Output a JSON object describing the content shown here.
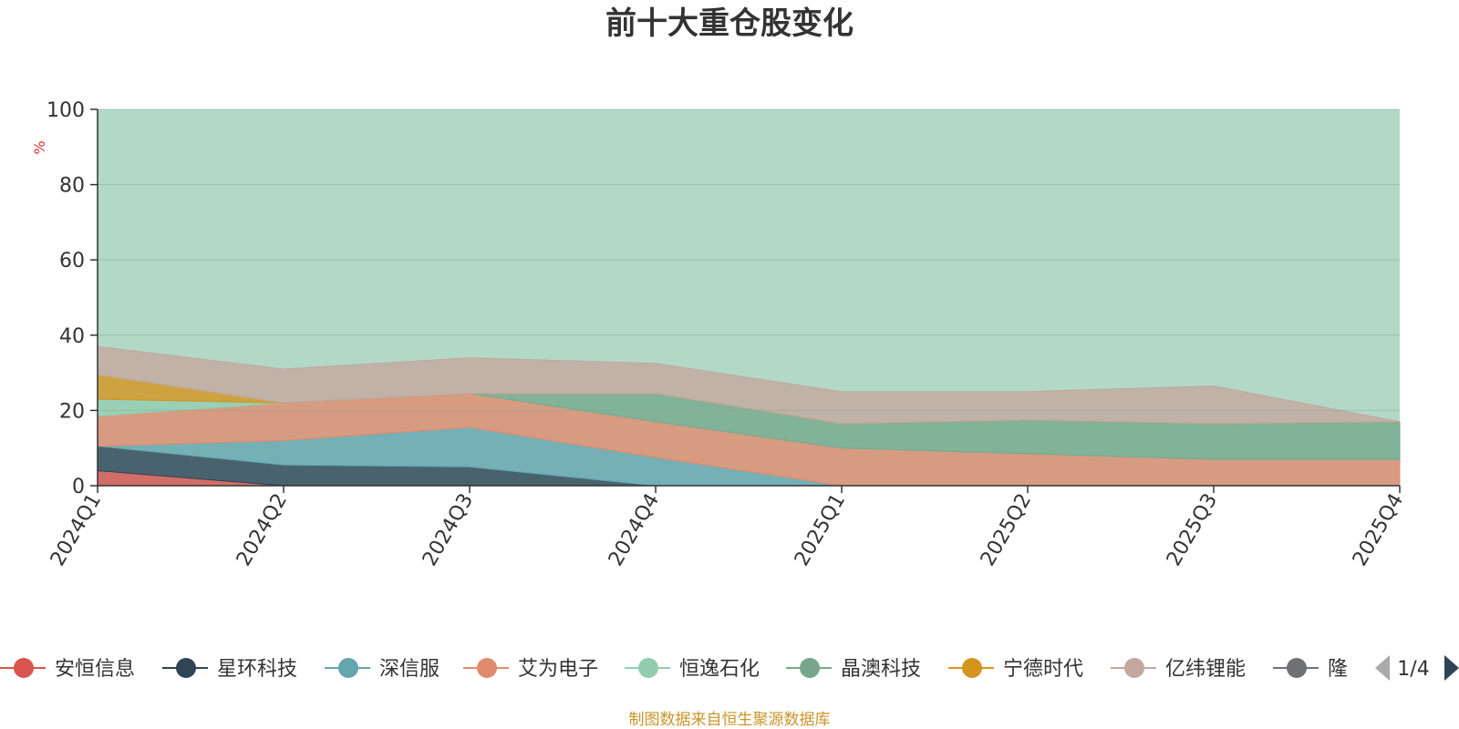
{
  "chart_data": {
    "type": "area",
    "stacked": true,
    "title": "前十大重仓股变化",
    "ylabel": "%",
    "ylim": [
      0,
      100
    ],
    "yticks": [
      0,
      20,
      40,
      60,
      80,
      100
    ],
    "grid": true,
    "categories": [
      "2024Q1",
      "2024Q2",
      "2024Q3",
      "2024Q4",
      "2025Q1",
      "2025Q2",
      "2025Q3",
      "2025Q4"
    ],
    "series": [
      {
        "name": "安恒信息",
        "color": "#d9534f",
        "values": [
          4.0,
          0,
          0,
          0,
          0,
          0,
          0,
          0
        ]
      },
      {
        "name": "星环科技",
        "color": "#2e4558",
        "values": [
          6.5,
          5.5,
          5.0,
          0,
          0,
          0,
          0,
          0
        ]
      },
      {
        "name": "深信服",
        "color": "#65a5b0",
        "values": [
          0,
          6.5,
          10.5,
          7.5,
          0,
          0,
          0,
          0
        ]
      },
      {
        "name": "艾为电子",
        "color": "#e08b6f",
        "values": [
          8.0,
          10.0,
          9.0,
          9.5,
          10.0,
          8.5,
          7.0,
          7.0
        ]
      },
      {
        "name": "恒逸石化",
        "color": "#93cdb0",
        "values": [
          4.5,
          0,
          0,
          0,
          0,
          0,
          0,
          0
        ]
      },
      {
        "name": "晶澳科技",
        "color": "#77a78b",
        "values": [
          0,
          0,
          0,
          7.5,
          6.5,
          9.0,
          9.5,
          10.0
        ]
      },
      {
        "name": "宁德时代",
        "color": "#d4951f",
        "values": [
          6.5,
          0,
          0,
          0,
          0,
          0,
          0,
          0
        ]
      },
      {
        "name": "亿纬锂能",
        "color": "#c4a79f",
        "values": [
          7.5,
          9.0,
          9.5,
          8.0,
          8.5,
          7.5,
          10.0,
          0
        ]
      }
    ]
  },
  "legend": {
    "items": [
      {
        "name": "安恒信息",
        "color": "#d9534f"
      },
      {
        "name": "星环科技",
        "color": "#2e4558"
      },
      {
        "name": "深信服",
        "color": "#65a5b0"
      },
      {
        "name": "艾为电子",
        "color": "#e08b6f"
      },
      {
        "name": "恒逸石化",
        "color": "#93cdb0"
      },
      {
        "name": "晶澳科技",
        "color": "#77a78b"
      },
      {
        "name": "宁德时代",
        "color": "#d4951f"
      },
      {
        "name": "亿纬锂能",
        "color": "#c4a79f"
      },
      {
        "name": "隆基绿能",
        "color": "#6f7175"
      }
    ],
    "page": "1/4"
  },
  "footer": "制图数据来自恒生聚源数据库"
}
